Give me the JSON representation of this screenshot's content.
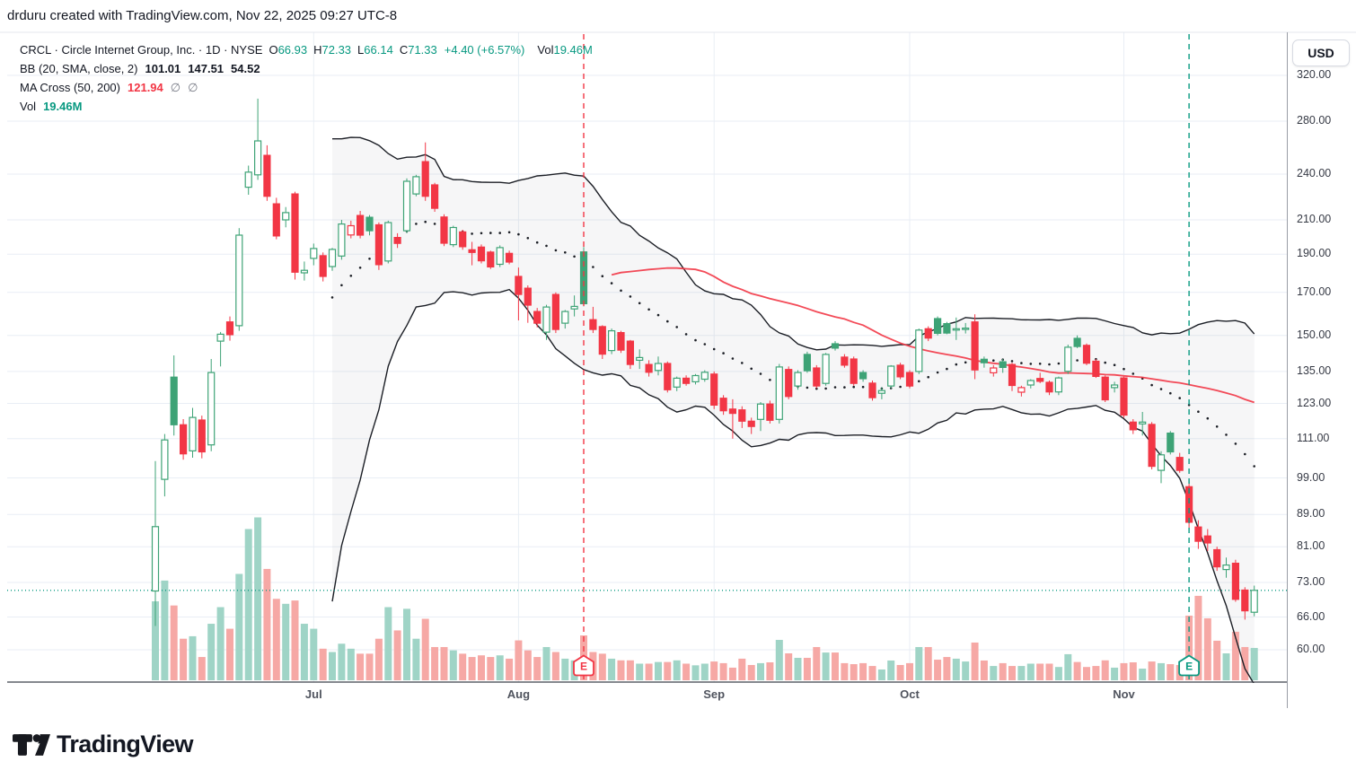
{
  "header": {
    "credit": "drduru created with TradingView.com, Nov 22, 2025 09:27 UTC-8"
  },
  "chart": {
    "legend": {
      "title": "CRCL · Circle Internet Group, Inc. · 1D · NYSE",
      "o_label": "O",
      "o": "66.93",
      "h_label": "H",
      "h": "72.33",
      "l_label": "L",
      "l": "66.14",
      "c_label": "C",
      "c": "71.33",
      "change": "+4.40 (+6.57%)",
      "vol_label": "Vol",
      "vol": "19.46M",
      "bb_label": "BB (20, SMA, close, 2)",
      "bb_basis": "101.01",
      "bb_upper": "147.51",
      "bb_lower": "54.52",
      "ma_label": "MA Cross (50, 200)",
      "ma_value": "121.94",
      "ma_empty1": "∅",
      "ma_empty2": "∅",
      "vol_row_label": "Vol",
      "vol_row_value": "19.46M"
    },
    "price_axis": {
      "currency": "USD",
      "ticks": [
        {
          "v": 320,
          "label": "320.00"
        },
        {
          "v": 280,
          "label": "280.00"
        },
        {
          "v": 240,
          "label": "240.00"
        },
        {
          "v": 210,
          "label": "210.00"
        },
        {
          "v": 190,
          "label": "190.00"
        },
        {
          "v": 170,
          "label": "170.00"
        },
        {
          "v": 150,
          "label": "150.00"
        },
        {
          "v": 135,
          "label": "135.00"
        },
        {
          "v": 123,
          "label": "123.00"
        },
        {
          "v": 111,
          "label": "111.00"
        },
        {
          "v": 99,
          "label": "99.00"
        },
        {
          "v": 89,
          "label": "89.00"
        },
        {
          "v": 81,
          "label": "81.00"
        },
        {
          "v": 73,
          "label": "73.00"
        },
        {
          "v": 66,
          "label": "66.00"
        },
        {
          "v": 60,
          "label": "60.00"
        }
      ]
    },
    "time_axis": {
      "months": [
        {
          "label": "Jul",
          "bar": 17
        },
        {
          "label": "Aug",
          "bar": 39
        },
        {
          "label": "Sep",
          "bar": 60
        },
        {
          "label": "Oct",
          "bar": 81
        },
        {
          "label": "Nov",
          "bar": 104
        }
      ]
    },
    "events": [
      {
        "bar": 46,
        "letter": "E",
        "color": "#f23645",
        "type": "earnings"
      },
      {
        "bar": 111,
        "letter": "E",
        "color": "#089981",
        "type": "earnings"
      }
    ]
  },
  "chart_data": {
    "type": "candlestick",
    "symbol": "CRCL",
    "company": "Circle Internet Group, Inc.",
    "interval": "1D",
    "exchange": "NYSE",
    "unit": "USD",
    "log_scale": true,
    "ylim": [
      54,
      330
    ],
    "current_price": 71.33,
    "volume_unit": "M shares",
    "candles": [
      [
        "Jun 5",
        71.2,
        104,
        64.3,
        85.9,
        47.5
      ],
      [
        "Jun 6",
        98.6,
        112.5,
        93.8,
        110.6,
        60
      ],
      [
        "Jun 9",
        132.8,
        141.5,
        112,
        115.6,
        45
      ],
      [
        "Jun 10",
        115.6,
        117.5,
        104.4,
        106.2,
        25
      ],
      [
        "Jun 11",
        107.1,
        121.4,
        105,
        118.1,
        26.5
      ],
      [
        "Jun 12",
        117.2,
        118.7,
        104.8,
        106.8,
        14
      ],
      [
        "Jun 13",
        109,
        140,
        107,
        134.6,
        34
      ],
      [
        "Jun 16",
        147.5,
        151.5,
        137,
        150.5,
        44
      ],
      [
        "Jun 17",
        156,
        158.5,
        147.7,
        150.3,
        31
      ],
      [
        "Jun 18",
        154.3,
        205,
        152,
        200.9,
        64
      ],
      [
        "Jun 20",
        231,
        246,
        226,
        241.4,
        91
      ],
      [
        "Jun 23",
        239.5,
        299,
        236,
        264.4,
        98
      ],
      [
        "Jun 24",
        253.5,
        261,
        222,
        225,
        67
      ],
      [
        "Jun 25",
        220.1,
        224,
        198.5,
        200.4,
        49
      ],
      [
        "Jun 26",
        210,
        218,
        205.5,
        214.5,
        46
      ],
      [
        "Jun 27",
        226.5,
        228,
        176.5,
        180.3,
        48
      ],
      [
        "Jun 30",
        180,
        186,
        176,
        181.3,
        34
      ],
      [
        "Jul 1",
        187.7,
        196,
        184,
        193.2,
        31
      ],
      [
        "Jul 2",
        189.2,
        191,
        175.5,
        178.1,
        19
      ],
      [
        "Jul 3",
        183.3,
        193.5,
        181,
        192.7,
        17
      ],
      [
        "Jul 7",
        189,
        210,
        187,
        207.5,
        22
      ],
      [
        "Jul 8",
        201,
        209.5,
        199,
        206.5,
        19
      ],
      [
        "Jul 9",
        212.7,
        215.6,
        199,
        200.9,
        16
      ],
      [
        "Jul 10",
        211.6,
        213,
        200.7,
        203.5,
        16
      ],
      [
        "Jul 11",
        207,
        208.5,
        181.5,
        184.3,
        25
      ],
      [
        "Jul 14",
        186.3,
        209.5,
        185,
        208.4,
        44
      ],
      [
        "Jul 15",
        199.5,
        202,
        193.5,
        196.1,
        30
      ],
      [
        "Jul 16",
        203.5,
        237,
        202,
        235,
        43
      ],
      [
        "Jul 17",
        226.5,
        239.5,
        225,
        238.2,
        25
      ],
      [
        "Jul 18",
        248.9,
        263.2,
        222,
        225,
        37
      ],
      [
        "Jul 21",
        232.6,
        234,
        215,
        217.2,
        20
      ],
      [
        "Jul 22",
        211.8,
        213.5,
        194.5,
        196.2,
        20
      ],
      [
        "Jul 23",
        195.4,
        206.5,
        194,
        205.4,
        18
      ],
      [
        "Jul 24",
        202.8,
        204,
        192.5,
        194.2,
        16
      ],
      [
        "Jul 25",
        192.5,
        197,
        184,
        191,
        14
      ],
      [
        "Jul 28",
        194,
        195.5,
        185,
        186.4,
        15
      ],
      [
        "Jul 29",
        191.2,
        192,
        182,
        183.1,
        14
      ],
      [
        "Jul 30",
        184.5,
        195,
        183,
        193.7,
        15
      ],
      [
        "Jul 31",
        190.5,
        192,
        184.5,
        185.7,
        13
      ],
      [
        "Aug 1",
        178.1,
        182.8,
        156.7,
        169,
        24
      ],
      [
        "Aug 4",
        172.1,
        173.5,
        155.6,
        163.8,
        18
      ],
      [
        "Aug 5",
        160.8,
        162.5,
        153.5,
        155.4,
        14
      ],
      [
        "Aug 6",
        151.4,
        164,
        148,
        162.9,
        20
      ],
      [
        "Aug 7",
        169,
        170,
        151,
        152.6,
        17
      ],
      [
        "Aug 8",
        155.4,
        161.5,
        153,
        160.8,
        13
      ],
      [
        "Aug 11",
        162,
        168.5,
        158.5,
        163.2,
        12
      ],
      [
        "Aug 12",
        191.3,
        194,
        163.2,
        164.5,
        27
      ],
      [
        "Aug 13",
        157,
        163,
        151,
        152.6,
        17
      ],
      [
        "Aug 14",
        153.9,
        154.5,
        140,
        142,
        16
      ],
      [
        "Aug 15",
        143.5,
        153,
        142,
        152,
        13
      ],
      [
        "Aug 18",
        151.2,
        152,
        142.5,
        143.7,
        12
      ],
      [
        "Aug 19",
        147.5,
        148,
        136,
        137.8,
        12
      ],
      [
        "Aug 20",
        139.5,
        144,
        136,
        140.6,
        10
      ],
      [
        "Aug 21",
        137.8,
        139.5,
        133,
        134.7,
        10
      ],
      [
        "Aug 22",
        135.4,
        141,
        133.5,
        138.2,
        11
      ],
      [
        "Aug 25",
        138.2,
        139,
        127,
        128,
        11
      ],
      [
        "Aug 26",
        129,
        133,
        127.5,
        132.4,
        12
      ],
      [
        "Aug 27",
        132.4,
        133.5,
        129.5,
        130.4,
        10
      ],
      [
        "Aug 28",
        131,
        134,
        130,
        133.4,
        9
      ],
      [
        "Aug 29",
        132,
        135.5,
        131,
        134.7,
        10
      ],
      [
        "Sep 2",
        134,
        135,
        121,
        122.4,
        11.3
      ],
      [
        "Sep 3",
        124.9,
        126,
        119,
        120.4,
        10.3
      ],
      [
        "Sep 4",
        121,
        124.5,
        111,
        119.5,
        7.6
      ],
      [
        "Sep 5",
        120.7,
        122,
        114.5,
        116.8,
        13
      ],
      [
        "Sep 8",
        116.8,
        118,
        112.5,
        115,
        9.2
      ],
      [
        "Sep 9",
        117.4,
        123.5,
        113.5,
        122.8,
        10.3
      ],
      [
        "Sep 10",
        122.8,
        124,
        116,
        117.1,
        10.8
      ],
      [
        "Sep 11",
        117.4,
        138,
        116,
        136.8,
        24.3
      ],
      [
        "Sep 12",
        135.8,
        137,
        124.5,
        125.5,
        16.2
      ],
      [
        "Sep 15",
        129.4,
        135.5,
        128,
        134.6,
        13.5
      ],
      [
        "Sep 16",
        141.9,
        143,
        134.5,
        135.3,
        13.5
      ],
      [
        "Sep 17",
        136.4,
        137.5,
        128.5,
        129.4,
        20
      ],
      [
        "Sep 18",
        130.4,
        142.5,
        129.5,
        141.9,
        16.7
      ],
      [
        "Sep 19",
        146.4,
        147.5,
        143.5,
        144.5,
        16.7
      ],
      [
        "Sep 22",
        140.8,
        142,
        136.5,
        137.5,
        10.3
      ],
      [
        "Sep 23",
        140,
        141,
        129.5,
        130.4,
        9.7
      ],
      [
        "Sep 24",
        134.6,
        135.5,
        131,
        132.2,
        10.3
      ],
      [
        "Sep 25",
        130.5,
        131.5,
        124,
        125.1,
        8.6
      ],
      [
        "Sep 26",
        126.7,
        129,
        124.5,
        127.7,
        6.5
      ],
      [
        "Sep 29",
        129.4,
        137.5,
        128.5,
        137.1,
        11.9
      ],
      [
        "Sep 30",
        137.5,
        138.5,
        132,
        132.9,
        9.2
      ],
      [
        "Oct 1",
        134.6,
        135.5,
        128.5,
        129.4,
        10.3
      ],
      [
        "Oct 2",
        135,
        153,
        134,
        152.3,
        20
      ],
      [
        "Oct 3",
        152.9,
        154,
        147.5,
        148.8,
        20
      ],
      [
        "Oct 6",
        157.5,
        158.5,
        150,
        150.9,
        12.4
      ],
      [
        "Oct 7",
        155.2,
        156,
        150.5,
        151,
        14
      ],
      [
        "Oct 8",
        152.5,
        158,
        148,
        152.9,
        13
      ],
      [
        "Oct 9",
        152.8,
        155.5,
        150.8,
        153.2,
        11.3
      ],
      [
        "Oct 10",
        156,
        159.5,
        132,
        135.6,
        22.7
      ],
      [
        "Oct 13",
        139.9,
        141,
        136.5,
        138.5,
        11.9
      ],
      [
        "Oct 14",
        134.5,
        137.5,
        133,
        136.4,
        8.6
      ],
      [
        "Oct 15",
        138.9,
        140,
        134.5,
        136.6,
        10.3
      ],
      [
        "Oct 16",
        137.8,
        138.5,
        127.5,
        129.6,
        8.6
      ],
      [
        "Oct 17",
        127.1,
        129.5,
        125.5,
        128.8,
        8.6
      ],
      [
        "Oct 20",
        129.8,
        132,
        128.5,
        131.5,
        10
      ],
      [
        "Oct 21",
        132.3,
        134.5,
        130.5,
        131.2,
        10
      ],
      [
        "Oct 22",
        130.8,
        131.5,
        126,
        127.2,
        10
      ],
      [
        "Oct 23",
        127.2,
        133,
        126,
        132.5,
        8
      ],
      [
        "Oct 24",
        135.1,
        146,
        134,
        144.9,
        15.7
      ],
      [
        "Oct 27",
        148.7,
        150,
        144.5,
        145.2,
        11
      ],
      [
        "Oct 28",
        145.7,
        146.5,
        137.5,
        138.3,
        8
      ],
      [
        "Oct 29",
        139.1,
        140,
        132.5,
        133.1,
        8.6
      ],
      [
        "Oct 30",
        132.8,
        133.5,
        123.5,
        124.3,
        12
      ],
      [
        "Oct 31",
        128.8,
        131,
        127,
        129.8,
        7.6
      ],
      [
        "Nov 3",
        132.5,
        133,
        118,
        118.9,
        10.3
      ],
      [
        "Nov 4",
        116.5,
        117.5,
        112.5,
        113.9,
        10.8
      ],
      [
        "Nov 5",
        115.9,
        120,
        112,
        116.5,
        7
      ],
      [
        "Nov 6",
        115.7,
        116.5,
        101.5,
        102.4,
        11.3
      ],
      [
        "Nov 7",
        101.2,
        107,
        97.5,
        105.9,
        10.3
      ],
      [
        "Nov 10",
        112.8,
        113.5,
        106,
        106.8,
        9.7
      ],
      [
        "Nov 11",
        105.1,
        106.5,
        100.5,
        101.2,
        9.2
      ],
      [
        "Nov 12",
        96.5,
        98,
        85.5,
        87,
        38.9
      ],
      [
        "Nov 13",
        85.8,
        87.5,
        80.5,
        82.3,
        50.8
      ],
      [
        "Nov 14",
        83.6,
        85.3,
        80,
        81.9,
        37.3
      ],
      [
        "Nov 17",
        80.3,
        81,
        75.5,
        76.4,
        23.8
      ],
      [
        "Nov 18",
        75.8,
        78.5,
        74,
        76.8,
        16.2
      ],
      [
        "Nov 19",
        77.2,
        78,
        69,
        69.5,
        29.2
      ],
      [
        "Nov 20",
        71.4,
        72,
        65.5,
        67.2,
        20
      ],
      [
        "Nov 21",
        66.93,
        72.33,
        66.14,
        71.33,
        19.46
      ]
    ],
    "indicators": {
      "bollinger": {
        "length": 20,
        "source": "close",
        "stdev": 2,
        "last_basis": 101.01,
        "last_upper": 147.51,
        "last_lower": 54.52
      },
      "ma_cross": {
        "fast": 50,
        "slow": 200,
        "last_fast": 121.94,
        "last_slow": null
      },
      "volume_last": "19.46M"
    }
  },
  "footer": {
    "logo_text": "TradingView"
  },
  "colors": {
    "up": "#3ea376",
    "down": "#f23645",
    "vol_up": "#9fd4c6",
    "vol_down": "#f6a8a5",
    "accent_teal": "#089981",
    "band": "#1b1e25",
    "band_fill": "#8a8e99",
    "grid": "#e9eef5"
  }
}
